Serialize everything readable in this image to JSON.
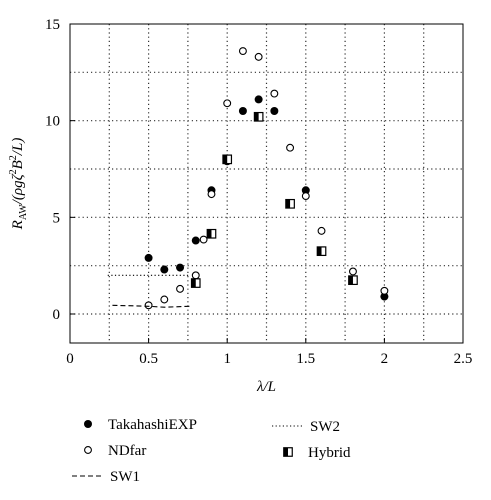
{
  "chart_data": {
    "type": "scatter",
    "xlabel": "λ/L",
    "ylabel_parts": {
      "main": "R",
      "main_sub": "AW",
      "mid": "/(ρgζ",
      "sup": "2",
      "b": "B",
      "b_sup": "2",
      "tail": "/L)"
    },
    "xlim": [
      0,
      2.5
    ],
    "ylim": [
      -1.5,
      15
    ],
    "x_ticks": [
      "0",
      "0.5",
      "1",
      "1.5",
      "2",
      "2.5"
    ],
    "y_ticks": [
      "0",
      "5",
      "10",
      "15"
    ],
    "grid": "dotted",
    "legend_position": "bottom",
    "series": [
      {
        "name": "TakahashiEXP",
        "marker": "filled-circle",
        "points": [
          [
            0.5,
            2.9
          ],
          [
            0.6,
            2.3
          ],
          [
            0.7,
            2.4
          ],
          [
            0.8,
            3.8
          ],
          [
            0.9,
            6.4
          ],
          [
            1.0,
            7.9
          ],
          [
            1.1,
            10.5
          ],
          [
            1.2,
            11.1
          ],
          [
            1.3,
            10.5
          ],
          [
            1.5,
            6.4
          ],
          [
            2.0,
            0.9
          ]
        ]
      },
      {
        "name": "NDfar",
        "marker": "open-circle",
        "points": [
          [
            0.5,
            0.45
          ],
          [
            0.6,
            0.75
          ],
          [
            0.7,
            1.3
          ],
          [
            0.8,
            2.0
          ],
          [
            0.85,
            3.85
          ],
          [
            0.9,
            6.2
          ],
          [
            1.0,
            10.9
          ],
          [
            1.1,
            13.6
          ],
          [
            1.2,
            13.3
          ],
          [
            1.3,
            11.4
          ],
          [
            1.4,
            8.6
          ],
          [
            1.5,
            6.1
          ],
          [
            1.6,
            4.3
          ],
          [
            1.8,
            2.2
          ],
          [
            2.0,
            1.2
          ]
        ]
      },
      {
        "name": "SW1",
        "line": "dashed",
        "points": [
          [
            0.27,
            0.45
          ],
          [
            0.5,
            0.4
          ],
          [
            0.6,
            0.35
          ],
          [
            0.76,
            0.4
          ]
        ]
      },
      {
        "name": "SW2",
        "line": "dotted",
        "points": [
          [
            0.24,
            2.0
          ],
          [
            0.76,
            2.0
          ]
        ]
      },
      {
        "name": "Hybrid",
        "marker": "half-filled-square",
        "points": [
          [
            0.8,
            1.6
          ],
          [
            0.9,
            4.15
          ],
          [
            1.0,
            8.0
          ],
          [
            1.2,
            10.2
          ],
          [
            1.4,
            5.7
          ],
          [
            1.6,
            3.25
          ],
          [
            1.8,
            1.75
          ]
        ]
      }
    ],
    "legend": [
      "TakahashiEXP",
      "SW2",
      "NDfar",
      "Hybrid",
      "SW1"
    ]
  }
}
